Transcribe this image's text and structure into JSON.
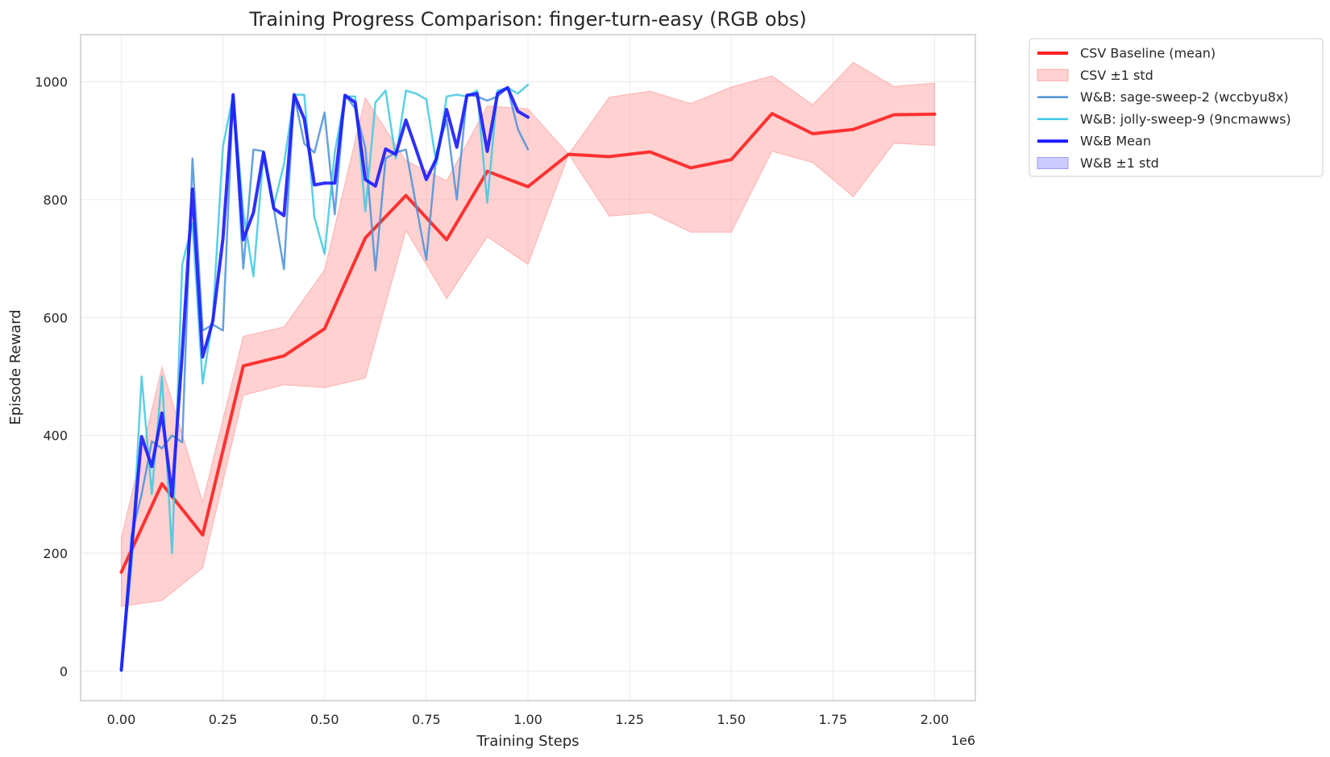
{
  "chart_data": {
    "type": "line",
    "title": "Training Progress Comparison: finger-turn-easy (RGB obs)",
    "xlabel": "Training Steps",
    "ylabel": "Episode Reward",
    "x_offset_label": "1e6",
    "xlim": [
      -0.1,
      2.1
    ],
    "ylim": [
      -50,
      1080
    ],
    "x_ticks": [
      0.0,
      0.25,
      0.5,
      0.75,
      1.0,
      1.25,
      1.5,
      1.75,
      2.0
    ],
    "x_tick_labels": [
      "0.00",
      "0.25",
      "0.50",
      "0.75",
      "1.00",
      "1.25",
      "1.50",
      "1.75",
      "2.00"
    ],
    "y_ticks": [
      0,
      200,
      400,
      600,
      800,
      1000
    ],
    "y_tick_labels": [
      "0",
      "200",
      "400",
      "600",
      "800",
      "1000"
    ],
    "grid": true,
    "legend_position": "outside-upper-right",
    "series": [
      {
        "name": "CSV Baseline (mean)",
        "kind": "line",
        "color": "#ff2020",
        "band_name": "CSV ±1 std",
        "band_color": "#ff9a9a",
        "x": [
          0.0,
          0.1,
          0.2,
          0.3,
          0.4,
          0.5,
          0.6,
          0.7,
          0.8,
          0.9,
          1.0,
          1.1,
          1.2,
          1.3,
          1.4,
          1.5,
          1.6,
          1.7,
          1.8,
          1.9,
          2.0
        ],
        "y": [
          168,
          318,
          231,
          518,
          535,
          581,
          735,
          807,
          732,
          848,
          822,
          877,
          873,
          881,
          854,
          868,
          946,
          912,
          919,
          944,
          945
        ],
        "lower": [
          110,
          120,
          175,
          468,
          486,
          481,
          497,
          748,
          632,
          737,
          690,
          877,
          772,
          778,
          745,
          745,
          882,
          863,
          805,
          896,
          892
        ],
        "upper": [
          226,
          516,
          287,
          568,
          584,
          681,
          973,
          866,
          832,
          959,
          954,
          877,
          974,
          984,
          963,
          991,
          1010,
          961,
          1033,
          992,
          998
        ]
      },
      {
        "name": "W&B: sage-sweep-2 (wccbyu8x)",
        "kind": "line",
        "color": "#4a90d9",
        "x": [
          0.0,
          0.025,
          0.05,
          0.075,
          0.1,
          0.125,
          0.15,
          0.175,
          0.2,
          0.225,
          0.25,
          0.275,
          0.3,
          0.325,
          0.35,
          0.375,
          0.4,
          0.425,
          0.45,
          0.475,
          0.5,
          0.525,
          0.55,
          0.575,
          0.6,
          0.625,
          0.65,
          0.675,
          0.7,
          0.725,
          0.75,
          0.775,
          0.8,
          0.825,
          0.85,
          0.875,
          0.9,
          0.925,
          0.95,
          0.975,
          1.0
        ],
        "y": [
          0,
          230,
          300,
          390,
          378,
          400,
          388,
          870,
          578,
          588,
          578,
          978,
          683,
          885,
          882,
          785,
          682,
          978,
          895,
          880,
          948,
          775,
          978,
          955,
          888,
          680,
          870,
          880,
          885,
          790,
          698,
          880,
          935,
          800,
          978,
          975,
          968,
          975,
          990,
          920,
          885
        ]
      },
      {
        "name": "W&B: jolly-sweep-9 (9ncmawws)",
        "kind": "line",
        "color": "#3dc8e0",
        "x": [
          0.0,
          0.025,
          0.05,
          0.075,
          0.1,
          0.125,
          0.15,
          0.175,
          0.2,
          0.225,
          0.25,
          0.275,
          0.3,
          0.325,
          0.35,
          0.375,
          0.4,
          0.425,
          0.45,
          0.475,
          0.5,
          0.525,
          0.55,
          0.575,
          0.6,
          0.625,
          0.65,
          0.675,
          0.7,
          0.725,
          0.75,
          0.775,
          0.8,
          0.825,
          0.85,
          0.875,
          0.9,
          0.925,
          0.95,
          0.975,
          1.0
        ],
        "y": [
          0,
          180,
          500,
          300,
          500,
          200,
          690,
          760,
          488,
          600,
          890,
          978,
          780,
          670,
          878,
          790,
          860,
          978,
          978,
          770,
          708,
          880,
          975,
          975,
          780,
          965,
          985,
          870,
          985,
          980,
          970,
          860,
          975,
          978,
          975,
          985,
          795,
          985,
          990,
          980,
          995
        ]
      },
      {
        "name": "W&B Mean",
        "kind": "line",
        "color": "#1a1aff",
        "band_name": "W&B ±1 std",
        "band_color": "#8c8cff",
        "x": [
          0.0,
          0.025,
          0.05,
          0.075,
          0.1,
          0.125,
          0.15,
          0.175,
          0.2,
          0.225,
          0.25,
          0.275,
          0.3,
          0.325,
          0.35,
          0.375,
          0.4,
          0.425,
          0.45,
          0.475,
          0.5,
          0.525,
          0.55,
          0.575,
          0.6,
          0.625,
          0.65,
          0.675,
          0.7,
          0.725,
          0.75,
          0.775,
          0.8,
          0.825,
          0.85,
          0.875,
          0.9,
          0.925,
          0.95,
          0.975,
          1.0
        ],
        "y": [
          2,
          205,
          398,
          347,
          438,
          297,
          540,
          818,
          533,
          594,
          734,
          978,
          732,
          778,
          880,
          785,
          773,
          978,
          937,
          825,
          828,
          828,
          977,
          965,
          834,
          823,
          886,
          877,
          935,
          885,
          834,
          870,
          953,
          889,
          977,
          980,
          882,
          980,
          990,
          950,
          940
        ]
      }
    ]
  }
}
